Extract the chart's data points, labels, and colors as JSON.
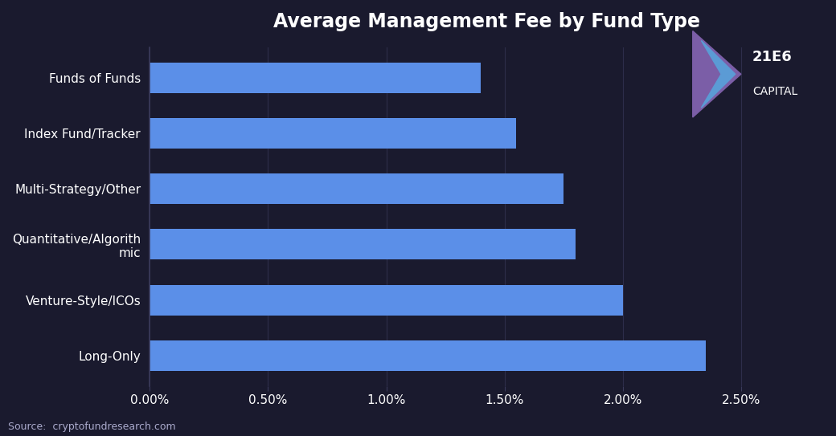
{
  "title": "Average Management Fee by Fund Type",
  "categories": [
    "Long-Only",
    "Venture-Style/ICOs",
    "Quantitative/Algorith\nmic",
    "Multi-Strategy/Other",
    "Index Fund/Tracker",
    "Funds of Funds"
  ],
  "values": [
    0.0235,
    0.02,
    0.018,
    0.0175,
    0.0155,
    0.014
  ],
  "bar_color": "#5B8FE8",
  "background_color": "#1a1a2e",
  "text_color": "#ffffff",
  "grid_color": "#2d2d4a",
  "xlim": [
    0,
    0.0285
  ],
  "xticks": [
    0.0,
    0.005,
    0.01,
    0.015,
    0.02,
    0.025
  ],
  "xtick_labels": [
    "0.00%",
    "0.50%",
    "1.00%",
    "1.50%",
    "2.00%",
    "2.50%"
  ],
  "source_text": "Source:  cryptofundresearch.com",
  "title_fontsize": 17,
  "tick_fontsize": 11,
  "label_fontsize": 11,
  "source_fontsize": 9,
  "logo_text_1": "21E6",
  "logo_text_2": "CAPITAL",
  "logo_color_outer": "#7B5EA7",
  "logo_color_inner": "#5B9BD5"
}
